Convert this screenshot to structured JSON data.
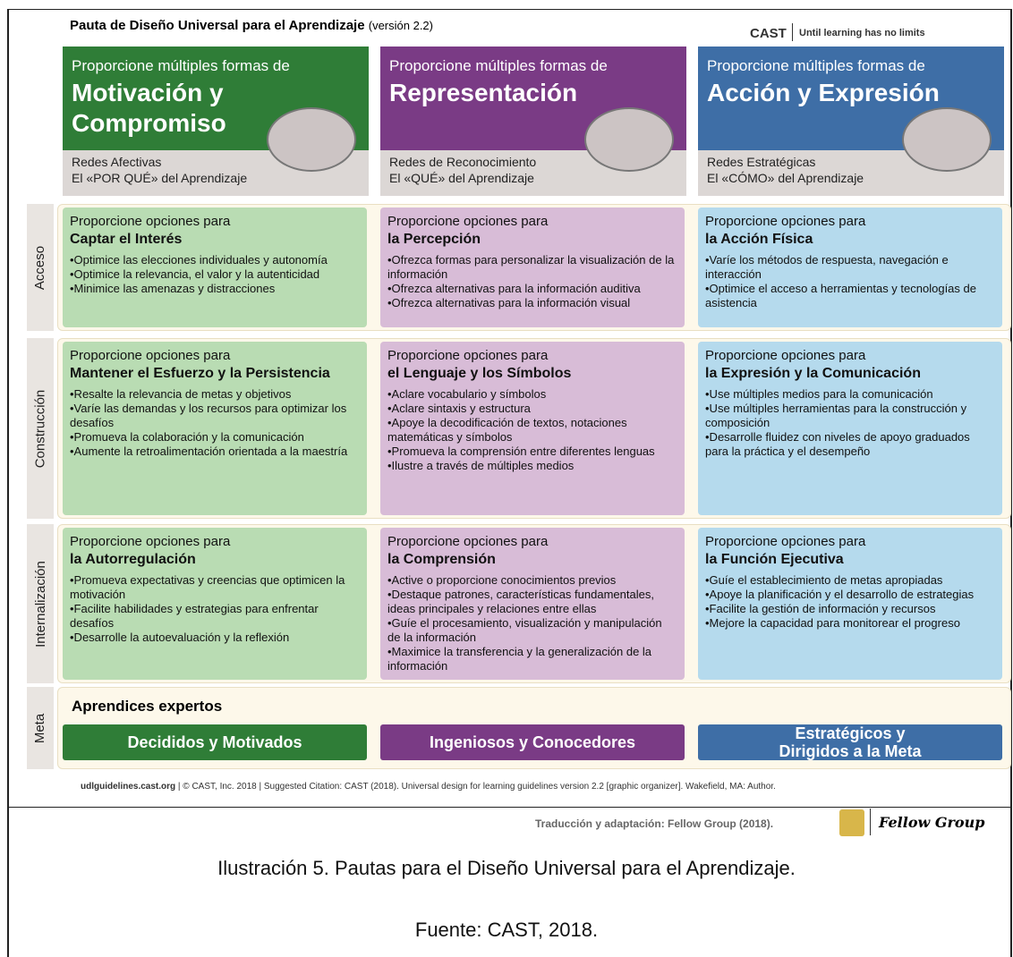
{
  "header": {
    "title": "Pauta de Diseño Universal para el Aprendizaje",
    "version": "(versión 2.2)",
    "brand": "CAST",
    "tagline": "Until learning has no limits"
  },
  "columns": [
    {
      "intro": "Proporcione múltiples formas de",
      "heading": "Motivación y Compromiso",
      "network": "Redes Afectivas",
      "question": "El «POR QUÉ» del Aprendizaje"
    },
    {
      "intro": "Proporcione múltiples formas de",
      "heading": "Representación",
      "network": "Redes de Reconocimiento",
      "question": "El «QUÉ» del Aprendizaje"
    },
    {
      "intro": "Proporcione múltiples formas de",
      "heading": "Acción y Expresión",
      "network": "Redes Estratégicas",
      "question": "El «CÓMO» del Aprendizaje"
    }
  ],
  "rows": [
    {
      "label": "Acceso",
      "cells": [
        {
          "intro": "Proporcione opciones para",
          "heading": "Captar el Interés",
          "items": [
            "•Optimice las elecciones individuales y autonomía",
            "•Optimice la relevancia, el valor y la autenticidad",
            "•Minimice las amenazas y distracciones"
          ]
        },
        {
          "intro": "Proporcione opciones para",
          "heading": "la Percepción",
          "items": [
            "•Ofrezca formas para personalizar la visualización de la información",
            "•Ofrezca alternativas para la información auditiva",
            "•Ofrezca alternativas para la información visual"
          ]
        },
        {
          "intro": "Proporcione opciones para",
          "heading": "la Acción Física",
          "items": [
            "•Varíe los métodos de respuesta, navegación e interacción",
            "•Optimice el acceso a herramientas y tecnologías de asistencia"
          ]
        }
      ]
    },
    {
      "label": "Construcción",
      "cells": [
        {
          "intro": "Proporcione opciones para",
          "heading": "Mantener el Esfuerzo y la Persistencia",
          "items": [
            "•Resalte la relevancia de metas y objetivos",
            "•Varíe las demandas y los recursos para optimizar los desafíos",
            "•Promueva la colaboración y la comunicación",
            "•Aumente la retroalimentación orientada a la maestría"
          ]
        },
        {
          "intro": "Proporcione opciones para",
          "heading": "el Lenguaje y los Símbolos",
          "items": [
            "•Aclare vocabulario y símbolos",
            "•Aclare sintaxis y estructura",
            "•Apoye la decodificación de textos, notaciones matemáticas y símbolos",
            "•Promueva la comprensión entre diferentes lenguas",
            "•Ilustre a través de múltiples medios"
          ]
        },
        {
          "intro": "Proporcione opciones para",
          "heading": "la Expresión y la Comunicación",
          "items": [
            "•Use múltiples medios para la comunicación",
            "•Use múltiples herramientas para la construcción y composición",
            "•Desarrolle fluidez con niveles de apoyo graduados para la práctica y el desempeño"
          ]
        }
      ]
    },
    {
      "label": "Internalización",
      "cells": [
        {
          "intro": "Proporcione opciones para",
          "heading": "la Autorregulación",
          "items": [
            "•Promueva expectativas y creencias que optimicen la motivación",
            "•Facilite habilidades y estrategias para enfrentar desafíos",
            "•Desarrolle la autoevaluación y la reflexión"
          ]
        },
        {
          "intro": "Proporcione opciones para",
          "heading": "la Comprensión",
          "items": [
            "•Active o proporcione conocimientos previos",
            "•Destaque patrones, características fundamentales, ideas principales y relaciones entre ellas",
            "•Guíe el procesamiento, visualización y manipulación de la información",
            "•Maximice la transferencia y la generalización de la información"
          ]
        },
        {
          "intro": "Proporcione opciones para",
          "heading": "la Función Ejecutiva",
          "items": [
            "•Guíe el establecimiento de metas apropiadas",
            "•Apoye la planificación y el desarrollo de estrategias",
            "•Facilite la gestión de información y recursos",
            "•Mejore la capacidad para monitorear el progreso"
          ]
        }
      ]
    }
  ],
  "meta": {
    "label": "Meta",
    "heading": "Aprendices expertos",
    "goals": [
      "Decididos y Motivados",
      "Ingeniosos y Conocedores",
      "Estratégicos y Dirigidos a la Meta"
    ]
  },
  "footer": {
    "url": "udlguidelines.cast.org",
    "citation": "| © CAST, Inc. 2018 | Suggested Citation: CAST (2018). Universal design for learning guidelines version 2.2 [graphic organizer]. Wakefield, MA: Author.",
    "translation": "Traducción y adaptación: Fellow Group (2018).",
    "logo": "Fellow Group"
  },
  "caption": {
    "text": "Ilustración 5. Pautas para el Diseño Universal para el Aprendizaje.",
    "source": "Fuente: CAST, 2018."
  }
}
